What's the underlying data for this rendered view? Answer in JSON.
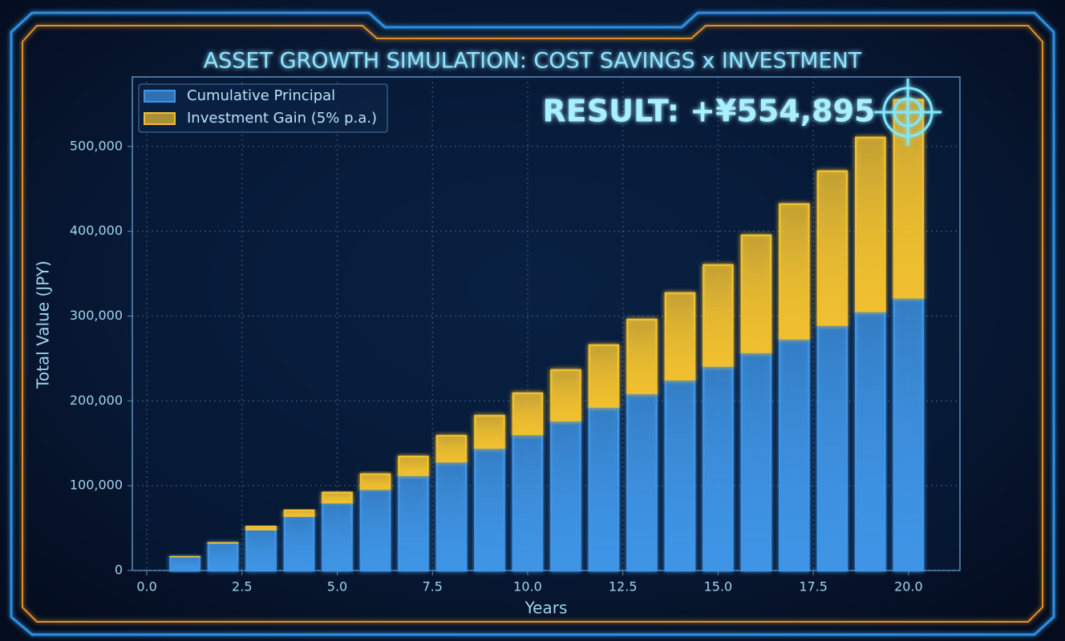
{
  "chart_data": {
    "type": "bar",
    "stacked": true,
    "title": "ASSET GROWTH SIMULATION: COST SAVINGS x INVESTMENT",
    "annotation": "RESULT: +¥554,895",
    "x_label": "Years",
    "y_label": "Total Value (JPY)",
    "x": [
      1,
      2,
      3,
      4,
      5,
      6,
      7,
      8,
      9,
      10,
      11,
      12,
      13,
      14,
      15,
      16,
      17,
      18,
      19,
      20
    ],
    "series": [
      {
        "name": "Cumulative Principal",
        "color": "#3f95e6",
        "values": [
          16100,
          32200,
          48300,
          64400,
          80500,
          96600,
          112700,
          128800,
          144900,
          161000,
          177100,
          193200,
          209300,
          225400,
          241500,
          257600,
          273700,
          289800,
          305900,
          322000
        ]
      },
      {
        "name": "Investment Gain (5% p.a.)",
        "color": "#f0c030",
        "values": [
          400,
          900,
          3700,
          6500,
          11200,
          16800,
          21500,
          30000,
          37500,
          47900,
          59200,
          72400,
          86500,
          101600,
          118600,
          137500,
          158200,
          180900,
          204500,
          232895
        ]
      }
    ],
    "xlim": [
      -0.38,
      21.35
    ],
    "ylim": [
      0,
      582000
    ],
    "xticks": [
      {
        "value": 0,
        "label": "0.0"
      },
      2.5,
      {
        "value": 5,
        "label": "5.0"
      },
      7.5,
      {
        "value": 10,
        "label": "10.0"
      },
      12.5,
      {
        "value": 15,
        "label": "15.0"
      },
      17.5,
      {
        "value": 20,
        "label": "20.0"
      }
    ],
    "yticks": [
      0,
      {
        "value": 100000,
        "label": "100,000"
      },
      {
        "value": 200000,
        "label": "200,000"
      },
      {
        "value": 300000,
        "label": "300,000"
      },
      {
        "value": 400000,
        "label": "400,000"
      },
      {
        "value": 500000,
        "label": "500,000"
      }
    ],
    "grid": true,
    "legend": "upper left"
  }
}
